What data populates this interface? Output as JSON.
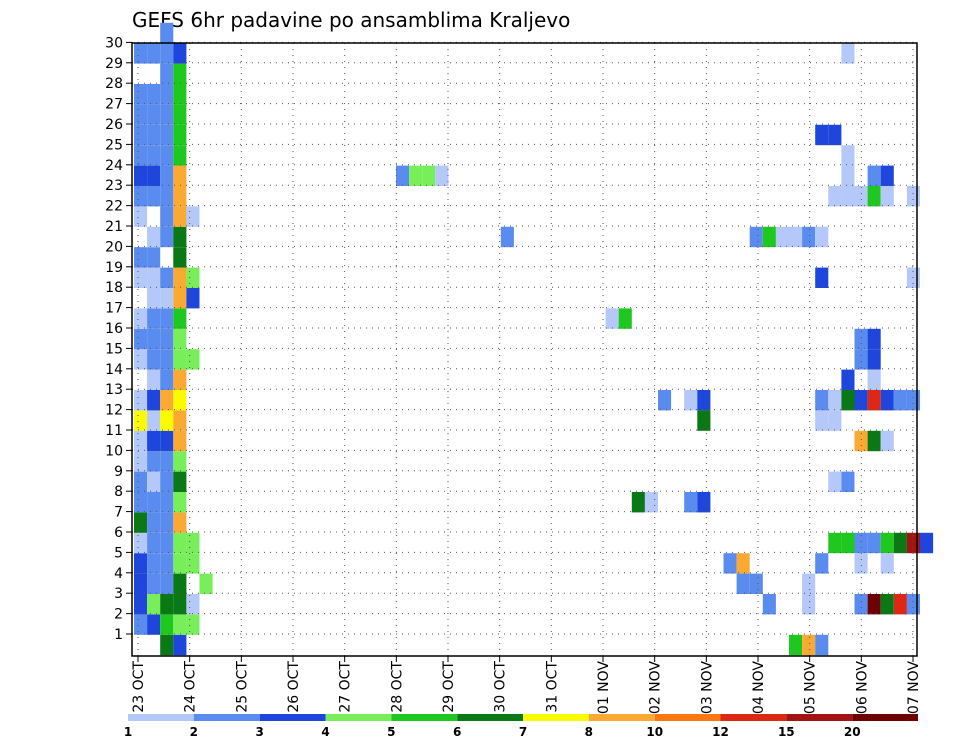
{
  "chart_data": {
    "type": "heatmap",
    "title": "GEFS 6hr padavine po ansamblima Kraljevo",
    "xlabel": "",
    "ylabel": "",
    "x_ticks": [
      "23 OCT",
      "24 OCT",
      "25 OCT",
      "26 OCT",
      "27 OCT",
      "28 OCT",
      "29 OCT",
      "30 OCT",
      "31 OCT",
      "01 NOV",
      "02 NOV",
      "03 NOV",
      "04 NOV",
      "05 NOV",
      "06 NOV",
      "07 NOV"
    ],
    "y_ticks": [
      "1",
      "2",
      "3",
      "4",
      "5",
      "6",
      "7",
      "8",
      "9",
      "10",
      "11",
      "12",
      "13",
      "14",
      "15",
      "16",
      "17",
      "18",
      "19",
      "20",
      "21",
      "22",
      "23",
      "24",
      "25",
      "26",
      "27",
      "28",
      "29",
      "30"
    ],
    "xlim_steps": [
      0,
      60
    ],
    "ylim_members": [
      0,
      30
    ],
    "grid": true,
    "colorbar": {
      "labels": [
        "1",
        "2",
        "3",
        "4",
        "5",
        "6",
        "7",
        "8",
        "10",
        "12",
        "15",
        "20"
      ],
      "colors": [
        "#b4c8fa",
        "#5a8cf0",
        "#1e46dc",
        "#78ee5a",
        "#1ec81e",
        "#0a7814",
        "#fafa00",
        "#faaa32",
        "#fa7814",
        "#dc2814",
        "#a01414",
        "#6e0000"
      ]
    },
    "cells": [
      [
        1,
        0,
        2
      ],
      [
        2,
        0,
        3
      ],
      [
        3,
        0,
        3
      ],
      [
        4,
        0,
        3
      ],
      [
        5,
        0,
        1
      ],
      [
        6,
        0,
        6
      ],
      [
        7,
        0,
        2
      ],
      [
        8,
        0,
        2
      ],
      [
        9,
        0,
        1
      ],
      [
        10,
        0,
        1
      ],
      [
        11,
        0,
        7
      ],
      [
        12,
        0,
        1
      ],
      [
        14,
        0,
        1
      ],
      [
        15,
        0,
        2
      ],
      [
        16,
        0,
        1
      ],
      [
        18,
        0,
        1
      ],
      [
        19,
        0,
        2
      ],
      [
        21,
        0,
        1
      ],
      [
        22,
        0,
        2
      ],
      [
        23,
        0,
        3
      ],
      [
        24,
        0,
        2
      ],
      [
        25,
        0,
        2
      ],
      [
        26,
        0,
        2
      ],
      [
        27,
        0,
        2
      ],
      [
        29,
        0,
        2
      ],
      [
        1,
        1,
        3
      ],
      [
        2,
        1,
        4
      ],
      [
        3,
        1,
        2
      ],
      [
        4,
        1,
        2
      ],
      [
        5,
        1,
        2
      ],
      [
        6,
        1,
        2
      ],
      [
        7,
        1,
        2
      ],
      [
        8,
        1,
        1
      ],
      [
        9,
        1,
        2
      ],
      [
        10,
        1,
        3
      ],
      [
        11,
        1,
        1
      ],
      [
        12,
        1,
        3
      ],
      [
        13,
        1,
        1
      ],
      [
        14,
        1,
        2
      ],
      [
        15,
        1,
        2
      ],
      [
        16,
        1,
        2
      ],
      [
        17,
        1,
        1
      ],
      [
        18,
        1,
        1
      ],
      [
        19,
        1,
        2
      ],
      [
        20,
        1,
        1
      ],
      [
        22,
        1,
        2
      ],
      [
        23,
        1,
        3
      ],
      [
        24,
        1,
        2
      ],
      [
        25,
        1,
        2
      ],
      [
        26,
        1,
        2
      ],
      [
        27,
        1,
        2
      ],
      [
        29,
        1,
        2
      ],
      [
        0,
        2,
        6
      ],
      [
        1,
        2,
        5
      ],
      [
        2,
        2,
        6
      ],
      [
        3,
        2,
        2
      ],
      [
        4,
        2,
        2
      ],
      [
        5,
        2,
        2
      ],
      [
        6,
        2,
        2
      ],
      [
        7,
        2,
        2
      ],
      [
        8,
        2,
        2
      ],
      [
        9,
        2,
        2
      ],
      [
        10,
        2,
        3
      ],
      [
        11,
        2,
        7
      ],
      [
        12,
        2,
        8
      ],
      [
        13,
        2,
        2
      ],
      [
        14,
        2,
        2
      ],
      [
        15,
        2,
        2
      ],
      [
        16,
        2,
        2
      ],
      [
        17,
        2,
        1
      ],
      [
        18,
        2,
        2
      ],
      [
        20,
        2,
        2
      ],
      [
        21,
        2,
        2
      ],
      [
        22,
        2,
        2
      ],
      [
        23,
        2,
        2
      ],
      [
        24,
        2,
        2
      ],
      [
        25,
        2,
        2
      ],
      [
        26,
        2,
        2
      ],
      [
        27,
        2,
        2
      ],
      [
        28,
        2,
        2
      ],
      [
        29,
        2,
        2
      ],
      [
        30,
        2,
        2
      ],
      [
        0,
        3,
        3
      ],
      [
        1,
        3,
        4
      ],
      [
        2,
        3,
        6
      ],
      [
        3,
        3,
        6
      ],
      [
        4,
        3,
        4
      ],
      [
        5,
        3,
        4
      ],
      [
        6,
        3,
        8
      ],
      [
        7,
        3,
        4
      ],
      [
        8,
        3,
        6
      ],
      [
        9,
        3,
        4
      ],
      [
        10,
        3,
        8
      ],
      [
        11,
        3,
        8
      ],
      [
        12,
        3,
        7
      ],
      [
        13,
        3,
        8
      ],
      [
        14,
        3,
        4
      ],
      [
        15,
        3,
        4
      ],
      [
        16,
        3,
        5
      ],
      [
        17,
        3,
        8
      ],
      [
        18,
        3,
        8
      ],
      [
        19,
        3,
        6
      ],
      [
        20,
        3,
        6
      ],
      [
        21,
        3,
        8
      ],
      [
        22,
        3,
        8
      ],
      [
        23,
        3,
        8
      ],
      [
        24,
        3,
        5
      ],
      [
        25,
        3,
        5
      ],
      [
        26,
        3,
        5
      ],
      [
        27,
        3,
        5
      ],
      [
        28,
        3,
        5
      ],
      [
        29,
        3,
        3
      ],
      [
        1,
        4,
        4
      ],
      [
        14,
        4,
        4
      ],
      [
        2,
        4,
        1
      ],
      [
        17,
        4,
        3
      ],
      [
        4,
        4,
        4
      ],
      [
        5,
        4,
        4
      ],
      [
        18,
        4,
        4
      ],
      [
        21,
        4,
        1
      ],
      [
        3,
        5,
        4
      ],
      [
        23,
        20,
        2
      ],
      [
        23,
        21,
        4
      ],
      [
        23,
        22,
        4
      ],
      [
        23,
        23,
        1
      ],
      [
        20,
        28,
        2
      ],
      [
        16,
        36,
        1
      ],
      [
        16,
        37,
        5
      ],
      [
        7,
        38,
        6
      ],
      [
        7,
        39,
        1
      ],
      [
        12,
        40,
        2
      ],
      [
        12,
        42,
        1
      ],
      [
        12,
        43,
        3
      ],
      [
        11,
        43,
        6
      ],
      [
        7,
        42,
        2
      ],
      [
        7,
        43,
        3
      ],
      [
        4,
        45,
        2
      ],
      [
        4,
        46,
        8
      ],
      [
        3,
        46,
        2
      ],
      [
        3,
        47,
        2
      ],
      [
        20,
        47,
        2
      ],
      [
        20,
        48,
        5
      ],
      [
        20,
        49,
        1
      ],
      [
        20,
        50,
        1
      ],
      [
        20,
        51,
        2
      ],
      [
        20,
        52,
        1
      ],
      [
        2,
        48,
        2
      ],
      [
        0,
        50,
        5
      ],
      [
        0,
        51,
        8
      ],
      [
        0,
        52,
        2
      ],
      [
        5,
        53,
        5
      ],
      [
        5,
        54,
        5
      ],
      [
        5,
        55,
        2
      ],
      [
        3,
        51,
        1
      ],
      [
        2,
        51,
        1
      ],
      [
        4,
        52,
        2
      ],
      [
        25,
        52,
        3
      ],
      [
        25,
        53,
        3
      ],
      [
        18,
        52,
        3
      ],
      [
        12,
        52,
        2
      ],
      [
        12,
        53,
        1
      ],
      [
        11,
        52,
        1
      ],
      [
        11,
        53,
        1
      ],
      [
        8,
        53,
        1
      ],
      [
        8,
        54,
        2
      ],
      [
        29,
        54,
        1
      ],
      [
        24,
        54,
        1
      ],
      [
        23,
        54,
        1
      ],
      [
        22,
        53,
        1
      ],
      [
        22,
        54,
        1
      ],
      [
        22,
        55,
        1
      ],
      [
        13,
        54,
        3
      ],
      [
        12,
        54,
        6
      ],
      [
        14,
        55,
        2
      ],
      [
        12,
        55,
        3
      ],
      [
        15,
        55,
        2
      ],
      [
        15,
        56,
        3
      ],
      [
        14,
        56,
        3
      ],
      [
        13,
        56,
        1
      ],
      [
        12,
        56,
        10
      ],
      [
        10,
        55,
        8
      ],
      [
        10,
        56,
        6
      ],
      [
        10,
        57,
        1
      ],
      [
        5,
        56,
        2
      ],
      [
        5,
        57,
        5
      ],
      [
        5,
        58,
        6
      ],
      [
        5,
        59,
        11
      ],
      [
        5,
        60,
        3
      ],
      [
        2,
        55,
        2
      ],
      [
        2,
        56,
        12
      ],
      [
        2,
        57,
        6
      ],
      [
        2,
        58,
        10
      ],
      [
        2,
        59,
        2
      ],
      [
        4,
        55,
        1
      ],
      [
        4,
        57,
        1
      ],
      [
        23,
        56,
        2
      ],
      [
        23,
        57,
        3
      ],
      [
        22,
        56,
        5
      ],
      [
        22,
        57,
        1
      ],
      [
        22,
        59,
        1
      ],
      [
        18,
        59,
        1
      ],
      [
        12,
        57,
        3
      ],
      [
        12,
        58,
        2
      ],
      [
        12,
        59,
        2
      ]
    ]
  }
}
